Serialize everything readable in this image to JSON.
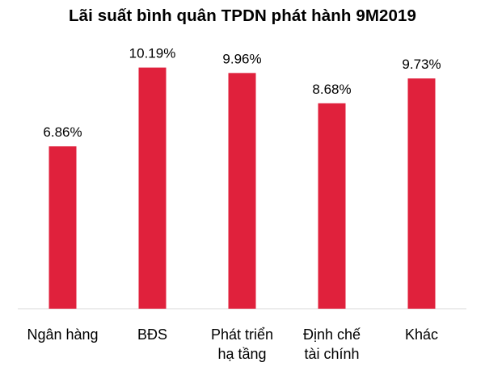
{
  "chart_data": {
    "type": "bar",
    "title": "Lãi suất bình quân TPDN phát hành 9M2019",
    "categories": [
      [
        "Ngân hàng"
      ],
      [
        "BĐS"
      ],
      [
        "Phát triển",
        "hạ tầng"
      ],
      [
        "Định chế",
        "tài chính"
      ],
      [
        "Khác"
      ]
    ],
    "values": [
      6.86,
      10.19,
      9.96,
      8.68,
      9.73
    ],
    "data_labels": [
      "6.86%",
      "10.19%",
      "9.96%",
      "8.68%",
      "9.73%"
    ],
    "xlabel": "",
    "ylabel": "",
    "ylim": [
      0,
      12
    ],
    "grid": false,
    "legend": "none",
    "bar_color": "#E0213C"
  }
}
